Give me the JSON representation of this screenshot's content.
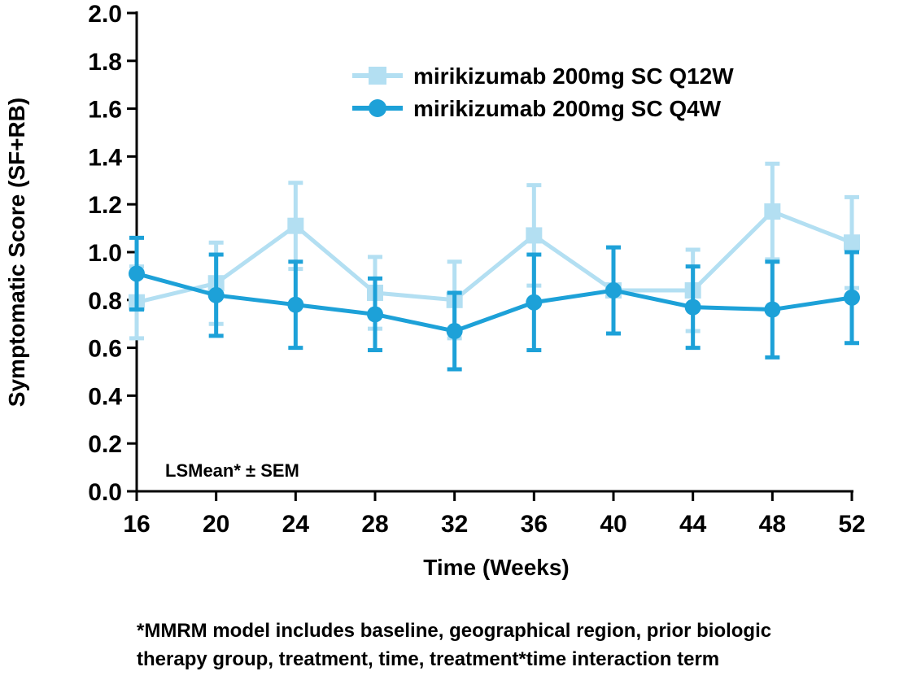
{
  "chart_data": {
    "type": "line",
    "xlabel": "Time (Weeks)",
    "ylabel": "Symptomatic Score (SF+RB)",
    "annotation": "LSMean* ± SEM",
    "x": [
      16,
      20,
      24,
      28,
      32,
      36,
      40,
      44,
      48,
      52
    ],
    "xlim": [
      16,
      52
    ],
    "ylim": [
      0,
      2.0
    ],
    "yticks": [
      "0.0",
      "0.2",
      "0.4",
      "0.6",
      "0.8",
      "1.0",
      "1.2",
      "1.4",
      "1.6",
      "1.8",
      "2.0"
    ],
    "xticks": [
      "16",
      "20",
      "24",
      "28",
      "32",
      "36",
      "40",
      "44",
      "48",
      "52"
    ],
    "legend_position": "top-right",
    "grid": false,
    "series": [
      {
        "name": "mirikizumab 200mg SC Q12W",
        "marker": "square",
        "color": "#b3dff2",
        "values": [
          0.79,
          0.87,
          1.11,
          0.83,
          0.8,
          1.07,
          0.84,
          0.84,
          1.17,
          1.04
        ],
        "lower": [
          0.64,
          0.7,
          0.93,
          0.68,
          0.64,
          0.86,
          0.66,
          0.67,
          0.97,
          0.85
        ],
        "upper": [
          0.94,
          1.04,
          1.29,
          0.98,
          0.96,
          1.28,
          1.02,
          1.01,
          1.37,
          1.23
        ]
      },
      {
        "name": "mirikizumab 200mg SC Q4W",
        "marker": "circle",
        "color": "#1da1d8",
        "values": [
          0.91,
          0.82,
          0.78,
          0.74,
          0.67,
          0.79,
          0.84,
          0.77,
          0.76,
          0.81
        ],
        "lower": [
          0.76,
          0.65,
          0.6,
          0.59,
          0.51,
          0.59,
          0.66,
          0.6,
          0.56,
          0.62
        ],
        "upper": [
          1.06,
          0.99,
          0.96,
          0.89,
          0.83,
          0.99,
          1.02,
          0.94,
          0.96,
          1.0
        ]
      }
    ]
  },
  "footnote": {
    "line1": "*MMRM model includes baseline, geographical region, prior biologic",
    "line2": "therapy group, treatment, time, treatment*time interaction term"
  }
}
